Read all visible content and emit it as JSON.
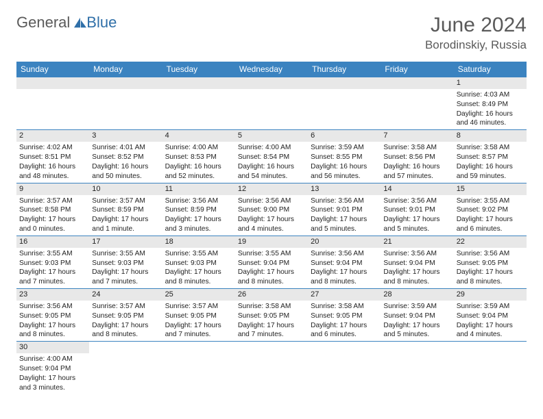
{
  "logo": {
    "text1": "General",
    "text2": "Blue"
  },
  "header": {
    "title": "June 2024",
    "location": "Borodinskiy, Russia"
  },
  "colors": {
    "header_bg": "#3b83c0",
    "header_fg": "#ffffff",
    "daybar_bg": "#e8e8e8",
    "border": "#3b83c0",
    "text": "#222222",
    "title": "#5a5a5a"
  },
  "weekdays": [
    "Sunday",
    "Monday",
    "Tuesday",
    "Wednesday",
    "Thursday",
    "Friday",
    "Saturday"
  ],
  "weeks": [
    [
      null,
      null,
      null,
      null,
      null,
      null,
      {
        "n": "1",
        "sunrise": "4:03 AM",
        "sunset": "8:49 PM",
        "daylight": "16 hours and 46 minutes."
      }
    ],
    [
      {
        "n": "2",
        "sunrise": "4:02 AM",
        "sunset": "8:51 PM",
        "daylight": "16 hours and 48 minutes."
      },
      {
        "n": "3",
        "sunrise": "4:01 AM",
        "sunset": "8:52 PM",
        "daylight": "16 hours and 50 minutes."
      },
      {
        "n": "4",
        "sunrise": "4:00 AM",
        "sunset": "8:53 PM",
        "daylight": "16 hours and 52 minutes."
      },
      {
        "n": "5",
        "sunrise": "4:00 AM",
        "sunset": "8:54 PM",
        "daylight": "16 hours and 54 minutes."
      },
      {
        "n": "6",
        "sunrise": "3:59 AM",
        "sunset": "8:55 PM",
        "daylight": "16 hours and 56 minutes."
      },
      {
        "n": "7",
        "sunrise": "3:58 AM",
        "sunset": "8:56 PM",
        "daylight": "16 hours and 57 minutes."
      },
      {
        "n": "8",
        "sunrise": "3:58 AM",
        "sunset": "8:57 PM",
        "daylight": "16 hours and 59 minutes."
      }
    ],
    [
      {
        "n": "9",
        "sunrise": "3:57 AM",
        "sunset": "8:58 PM",
        "daylight": "17 hours and 0 minutes."
      },
      {
        "n": "10",
        "sunrise": "3:57 AM",
        "sunset": "8:59 PM",
        "daylight": "17 hours and 1 minute."
      },
      {
        "n": "11",
        "sunrise": "3:56 AM",
        "sunset": "8:59 PM",
        "daylight": "17 hours and 3 minutes."
      },
      {
        "n": "12",
        "sunrise": "3:56 AM",
        "sunset": "9:00 PM",
        "daylight": "17 hours and 4 minutes."
      },
      {
        "n": "13",
        "sunrise": "3:56 AM",
        "sunset": "9:01 PM",
        "daylight": "17 hours and 5 minutes."
      },
      {
        "n": "14",
        "sunrise": "3:56 AM",
        "sunset": "9:01 PM",
        "daylight": "17 hours and 5 minutes."
      },
      {
        "n": "15",
        "sunrise": "3:55 AM",
        "sunset": "9:02 PM",
        "daylight": "17 hours and 6 minutes."
      }
    ],
    [
      {
        "n": "16",
        "sunrise": "3:55 AM",
        "sunset": "9:03 PM",
        "daylight": "17 hours and 7 minutes."
      },
      {
        "n": "17",
        "sunrise": "3:55 AM",
        "sunset": "9:03 PM",
        "daylight": "17 hours and 7 minutes."
      },
      {
        "n": "18",
        "sunrise": "3:55 AM",
        "sunset": "9:03 PM",
        "daylight": "17 hours and 8 minutes."
      },
      {
        "n": "19",
        "sunrise": "3:55 AM",
        "sunset": "9:04 PM",
        "daylight": "17 hours and 8 minutes."
      },
      {
        "n": "20",
        "sunrise": "3:56 AM",
        "sunset": "9:04 PM",
        "daylight": "17 hours and 8 minutes."
      },
      {
        "n": "21",
        "sunrise": "3:56 AM",
        "sunset": "9:04 PM",
        "daylight": "17 hours and 8 minutes."
      },
      {
        "n": "22",
        "sunrise": "3:56 AM",
        "sunset": "9:05 PM",
        "daylight": "17 hours and 8 minutes."
      }
    ],
    [
      {
        "n": "23",
        "sunrise": "3:56 AM",
        "sunset": "9:05 PM",
        "daylight": "17 hours and 8 minutes."
      },
      {
        "n": "24",
        "sunrise": "3:57 AM",
        "sunset": "9:05 PM",
        "daylight": "17 hours and 8 minutes."
      },
      {
        "n": "25",
        "sunrise": "3:57 AM",
        "sunset": "9:05 PM",
        "daylight": "17 hours and 7 minutes."
      },
      {
        "n": "26",
        "sunrise": "3:58 AM",
        "sunset": "9:05 PM",
        "daylight": "17 hours and 7 minutes."
      },
      {
        "n": "27",
        "sunrise": "3:58 AM",
        "sunset": "9:05 PM",
        "daylight": "17 hours and 6 minutes."
      },
      {
        "n": "28",
        "sunrise": "3:59 AM",
        "sunset": "9:04 PM",
        "daylight": "17 hours and 5 minutes."
      },
      {
        "n": "29",
        "sunrise": "3:59 AM",
        "sunset": "9:04 PM",
        "daylight": "17 hours and 4 minutes."
      }
    ],
    [
      {
        "n": "30",
        "sunrise": "4:00 AM",
        "sunset": "9:04 PM",
        "daylight": "17 hours and 3 minutes."
      },
      null,
      null,
      null,
      null,
      null,
      null
    ]
  ]
}
